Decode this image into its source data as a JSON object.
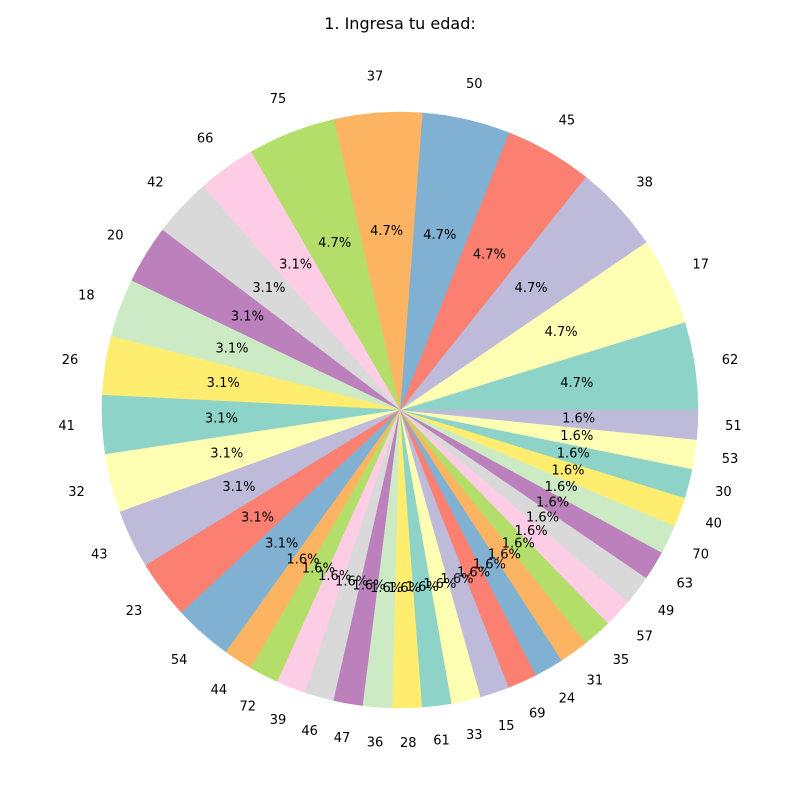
{
  "chart_data": {
    "type": "pie",
    "title": "1. Ingresa tu edad:",
    "labels": [
      "62",
      "17",
      "38",
      "45",
      "50",
      "37",
      "75",
      "66",
      "42",
      "20",
      "18",
      "26",
      "41",
      "32",
      "43",
      "23",
      "54",
      "44",
      "72",
      "39",
      "46",
      "47",
      "36",
      "28",
      "61",
      "33",
      "15",
      "69",
      "24",
      "31",
      "35",
      "57",
      "49",
      "63",
      "70",
      "40",
      "30",
      "53",
      "51"
    ],
    "values": [
      3,
      3,
      3,
      3,
      3,
      3,
      3,
      2,
      2,
      2,
      2,
      2,
      2,
      2,
      2,
      2,
      2,
      1,
      1,
      1,
      1,
      1,
      1,
      1,
      1,
      1,
      1,
      1,
      1,
      1,
      1,
      1,
      1,
      1,
      1,
      1,
      1,
      1,
      1
    ],
    "percent_labels": [
      "4.7%",
      "4.7%",
      "4.7%",
      "4.7%",
      "4.7%",
      "4.7%",
      "4.7%",
      "3.1%",
      "3.1%",
      "3.1%",
      "3.1%",
      "3.1%",
      "3.1%",
      "3.1%",
      "3.1%",
      "3.1%",
      "3.1%",
      "1.6%",
      "1.6%",
      "1.6%",
      "1.6%",
      "1.6%",
      "1.6%",
      "1.6%",
      "1.6%",
      "1.6%",
      "1.6%",
      "1.6%",
      "1.6%",
      "1.6%",
      "1.6%",
      "1.6%",
      "1.6%",
      "1.6%",
      "1.6%",
      "1.6%",
      "1.6%",
      "1.6%",
      "1.6%"
    ],
    "colors": [
      "#8dd3c7",
      "#ffffb3",
      "#bebada",
      "#fb8072",
      "#80b1d3",
      "#fdb462",
      "#b3de69",
      "#fccde5",
      "#d9d9d9",
      "#bc80bd",
      "#ccebc5",
      "#ffed6f"
    ],
    "start_angle_deg": 0,
    "direction": "counterclockwise"
  }
}
